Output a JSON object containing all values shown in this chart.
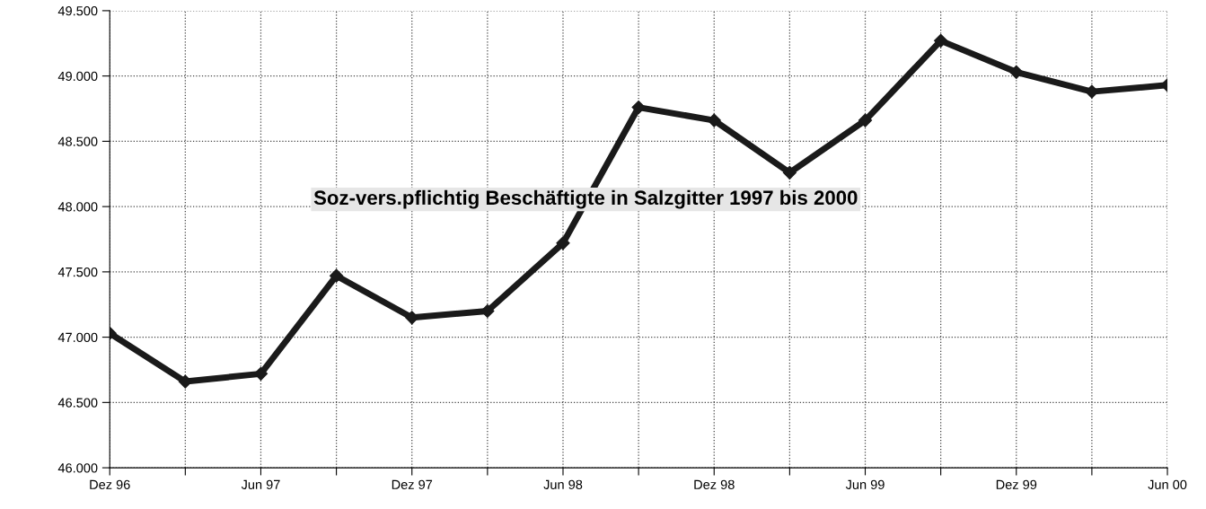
{
  "chart_data": {
    "type": "line",
    "title": "Soz-vers.pflichtig Beschäftigte in Salzgitter 1997 bis 2000",
    "categories": [
      "Dez 96",
      null,
      "Jun 97",
      null,
      "Dez 97",
      null,
      "Jun 98",
      null,
      "Dez 98",
      null,
      "Jun 99",
      null,
      "Dez 99",
      null,
      "Jun 00"
    ],
    "series": [
      {
        "color": "#1a1a1a",
        "values": [
          47030,
          46660,
          46720,
          47470,
          47150,
          47200,
          47720,
          48760,
          48660,
          48260,
          48660,
          49270,
          49030,
          48880,
          48930
        ]
      }
    ],
    "ylim": [
      46000,
      49500
    ],
    "yticks": [
      {
        "value": 46000,
        "label": "46.000"
      },
      {
        "value": 46500,
        "label": "46.500"
      },
      {
        "value": 47000,
        "label": "47.000"
      },
      {
        "value": 47500,
        "label": "47.500"
      },
      {
        "value": 48000,
        "label": "48.000"
      },
      {
        "value": 48500,
        "label": "48.500"
      },
      {
        "value": 49000,
        "label": "49.000"
      },
      {
        "value": 49500,
        "label": "49.500"
      }
    ],
    "grid": true,
    "marker": "diamond",
    "line_style": "solid"
  }
}
